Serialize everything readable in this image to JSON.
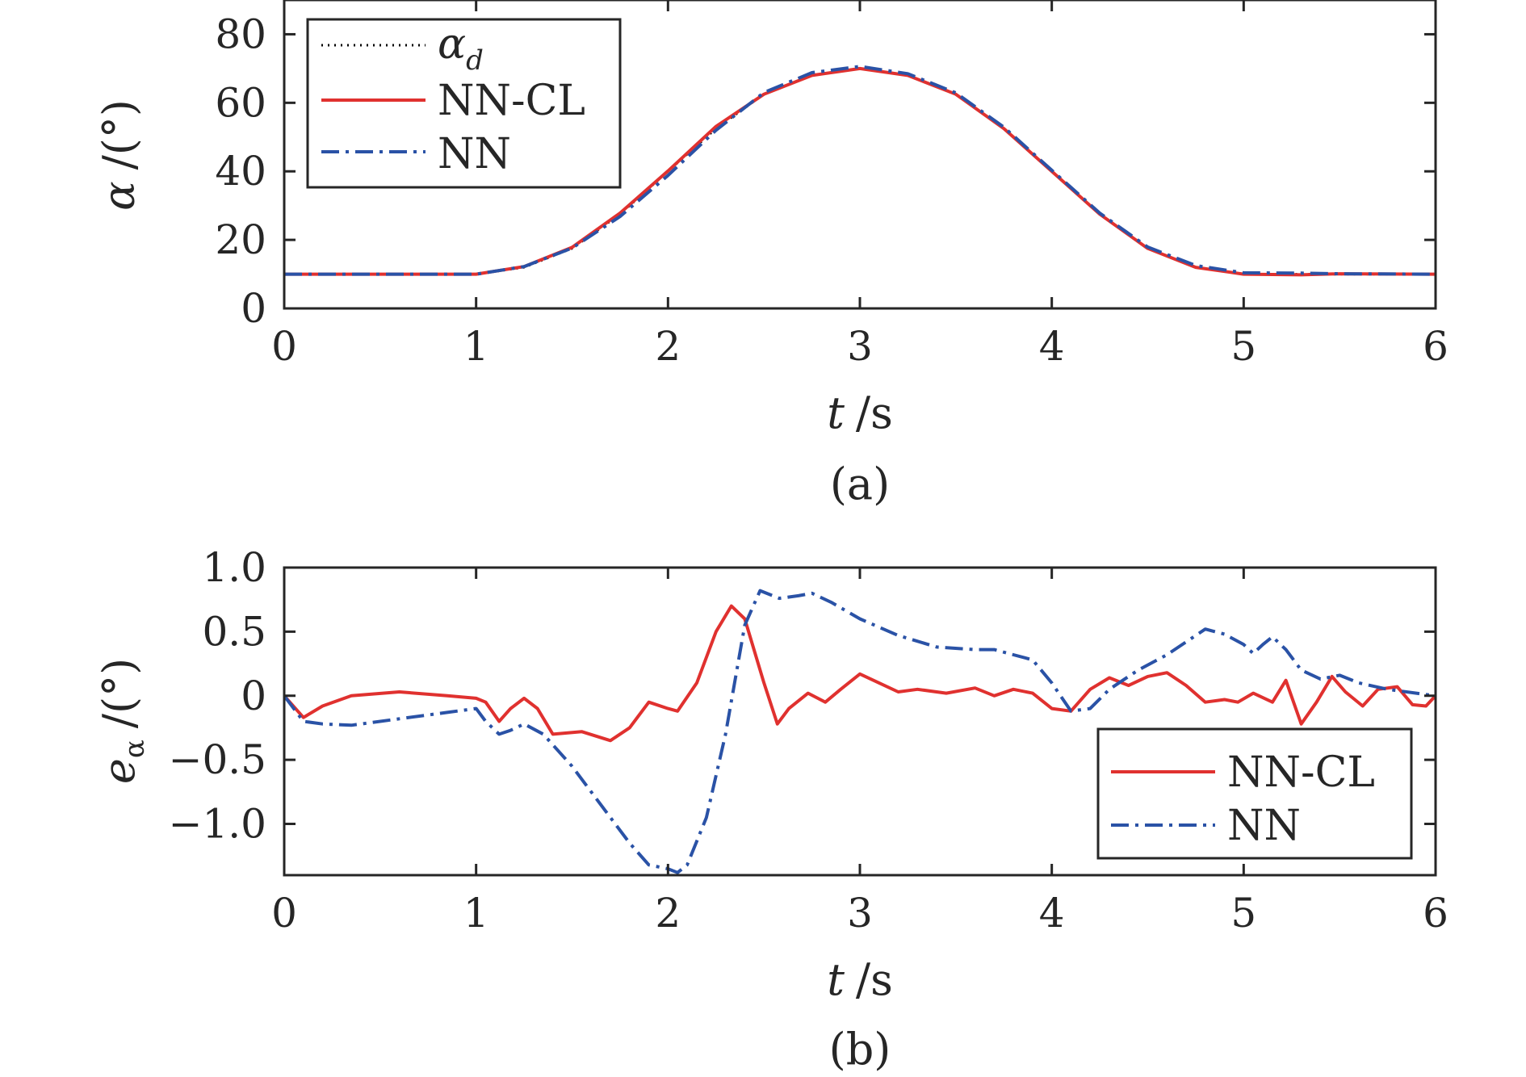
{
  "chart_data": [
    {
      "type": "line",
      "caption": "(a)",
      "xlabel_var": "t",
      "xlabel_unit": "/s",
      "ylabel_var": "α",
      "ylabel_unit": "/(°)",
      "xlim": [
        0,
        6
      ],
      "ylim": [
        0,
        90
      ],
      "xticks": [
        0,
        1,
        2,
        3,
        4,
        5,
        6
      ],
      "xtick_labels": [
        "0",
        "1",
        "2",
        "3",
        "4",
        "5",
        "6"
      ],
      "yticks": [
        0,
        20,
        40,
        60,
        80
      ],
      "ytick_labels": [
        "0",
        "20",
        "40",
        "60",
        "80"
      ],
      "grid": false,
      "legend_placement": "top-left",
      "legend": [
        {
          "label_main": "α",
          "label_sub": "d",
          "style": "dotted",
          "color": "#000000"
        },
        {
          "label_main": "NN-CL",
          "label_sub": "",
          "style": "solid",
          "color": "#e0312f"
        },
        {
          "label_main": "NN",
          "label_sub": "",
          "style": "dashdot",
          "color": "#2a52a6"
        }
      ],
      "series": [
        {
          "name": "α_d",
          "color": "#000000",
          "style": "dotted",
          "x": [
            0,
            0.5,
            1.0,
            1.25,
            1.5,
            1.75,
            2.0,
            2.25,
            2.5,
            2.75,
            3.0,
            3.25,
            3.5,
            3.75,
            4.0,
            4.25,
            4.5,
            4.75,
            5.0,
            5.5,
            6.0
          ],
          "y": [
            10,
            10,
            10,
            12,
            17.5,
            27.5,
            40,
            52.5,
            62.5,
            68,
            70,
            68,
            62.5,
            52.5,
            40,
            27.5,
            17.5,
            12,
            10,
            10,
            10
          ]
        },
        {
          "name": "NN-CL",
          "color": "#e0312f",
          "style": "solid",
          "x": [
            0,
            0.5,
            1.0,
            1.25,
            1.5,
            1.75,
            2.0,
            2.25,
            2.5,
            2.75,
            3.0,
            3.25,
            3.5,
            3.75,
            4.0,
            4.25,
            4.5,
            4.75,
            5.0,
            5.3,
            5.5,
            6.0
          ],
          "y": [
            10,
            10,
            10,
            12.2,
            17.8,
            27.8,
            40.1,
            53.1,
            62.5,
            68,
            70,
            68,
            62.5,
            52.5,
            40,
            27.5,
            17.5,
            12,
            10,
            9.8,
            10.1,
            10
          ]
        },
        {
          "name": "NN",
          "color": "#2a52a6",
          "style": "dashdot",
          "x": [
            0,
            0.5,
            1.0,
            1.25,
            1.5,
            1.75,
            2.0,
            2.25,
            2.5,
            2.75,
            3.0,
            3.25,
            3.5,
            3.75,
            4.0,
            4.25,
            4.5,
            4.75,
            5.0,
            5.3,
            5.5,
            6.0
          ],
          "y": [
            10,
            10,
            10,
            12.2,
            17.6,
            26.8,
            38.8,
            52,
            63,
            68.8,
            70.6,
            68.5,
            62.9,
            52.9,
            40.3,
            27.8,
            17.9,
            12.5,
            10.4,
            10.3,
            10.1,
            10
          ]
        }
      ]
    },
    {
      "type": "line",
      "caption": "(b)",
      "xlabel_var": "t",
      "xlabel_unit": "/s",
      "ylabel_var": "e",
      "ylabel_sub": "α",
      "ylabel_unit": "/(°)",
      "xlim": [
        0,
        6
      ],
      "ylim": [
        -1.4,
        1.0
      ],
      "xticks": [
        0,
        1,
        2,
        3,
        4,
        5,
        6
      ],
      "xtick_labels": [
        "0",
        "1",
        "2",
        "3",
        "4",
        "5",
        "6"
      ],
      "yticks": [
        -1.0,
        -0.5,
        0,
        0.5,
        1.0
      ],
      "ytick_labels": [
        "−1.0",
        "−0.5",
        "0",
        "0.5",
        "1.0"
      ],
      "grid": false,
      "legend_placement": "bottom-right",
      "legend": [
        {
          "label_main": "NN-CL",
          "label_sub": "",
          "style": "solid",
          "color": "#e0312f"
        },
        {
          "label_main": "NN",
          "label_sub": "",
          "style": "dashdot",
          "color": "#2a52a6"
        }
      ],
      "series": [
        {
          "name": "NN-CL",
          "color": "#e0312f",
          "style": "solid",
          "x": [
            0,
            0.1,
            0.2,
            0.35,
            0.6,
            0.85,
            1.0,
            1.05,
            1.12,
            1.18,
            1.25,
            1.32,
            1.4,
            1.55,
            1.7,
            1.8,
            1.9,
            2.0,
            2.05,
            2.15,
            2.25,
            2.33,
            2.4,
            2.5,
            2.57,
            2.63,
            2.73,
            2.82,
            2.9,
            3.0,
            3.1,
            3.2,
            3.3,
            3.45,
            3.6,
            3.7,
            3.8,
            3.9,
            4.0,
            4.1,
            4.2,
            4.3,
            4.4,
            4.5,
            4.6,
            4.7,
            4.8,
            4.9,
            4.97,
            5.05,
            5.15,
            5.22,
            5.3,
            5.38,
            5.46,
            5.53,
            5.62,
            5.7,
            5.8,
            5.88,
            5.95,
            6.0
          ],
          "y": [
            0,
            -0.17,
            -0.08,
            0,
            0.03,
            0,
            -0.02,
            -0.05,
            -0.2,
            -0.1,
            -0.02,
            -0.1,
            -0.3,
            -0.28,
            -0.35,
            -0.25,
            -0.05,
            -0.1,
            -0.12,
            0.1,
            0.5,
            0.7,
            0.6,
            0.1,
            -0.22,
            -0.1,
            0.02,
            -0.05,
            0.05,
            0.17,
            0.1,
            0.03,
            0.05,
            0.02,
            0.06,
            0,
            0.05,
            0.02,
            -0.1,
            -0.12,
            0.05,
            0.14,
            0.08,
            0.15,
            0.18,
            0.08,
            -0.05,
            -0.03,
            -0.05,
            0.02,
            -0.05,
            0.12,
            -0.22,
            -0.05,
            0.15,
            0.03,
            -0.08,
            0.05,
            0.07,
            -0.07,
            -0.08,
            0
          ]
        },
        {
          "name": "NN",
          "color": "#2a52a6",
          "style": "dashdot",
          "x": [
            0,
            0.1,
            0.2,
            0.35,
            0.6,
            0.85,
            1.0,
            1.05,
            1.12,
            1.18,
            1.25,
            1.35,
            1.5,
            1.65,
            1.8,
            1.9,
            2.0,
            2.05,
            2.1,
            2.2,
            2.3,
            2.4,
            2.48,
            2.58,
            2.68,
            2.75,
            2.85,
            3.0,
            3.2,
            3.4,
            3.6,
            3.7,
            3.8,
            3.9,
            4.0,
            4.1,
            4.2,
            4.3,
            4.45,
            4.6,
            4.7,
            4.8,
            4.9,
            5.0,
            5.05,
            5.1,
            5.15,
            5.22,
            5.3,
            5.4,
            5.5,
            5.6,
            5.75,
            5.9,
            6.0
          ],
          "y": [
            0,
            -0.2,
            -0.22,
            -0.23,
            -0.18,
            -0.13,
            -0.1,
            -0.2,
            -0.3,
            -0.27,
            -0.22,
            -0.3,
            -0.55,
            -0.85,
            -1.15,
            -1.32,
            -1.35,
            -1.38,
            -1.32,
            -0.95,
            -0.3,
            0.55,
            0.82,
            0.76,
            0.78,
            0.8,
            0.73,
            0.6,
            0.47,
            0.38,
            0.36,
            0.36,
            0.32,
            0.28,
            0.1,
            -0.12,
            -0.1,
            0.05,
            0.2,
            0.32,
            0.42,
            0.52,
            0.48,
            0.4,
            0.33,
            0.4,
            0.46,
            0.36,
            0.2,
            0.13,
            0.16,
            0.1,
            0.05,
            0.02,
            0
          ]
        }
      ]
    }
  ]
}
